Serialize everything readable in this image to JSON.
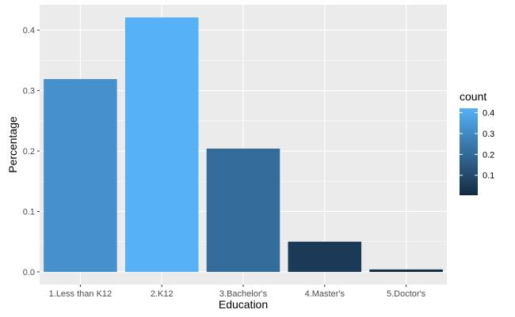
{
  "chart_data": {
    "type": "bar",
    "title": "",
    "xlabel": "Education",
    "ylabel": "Percentage",
    "categories": [
      "1.Less than K12",
      "2.K12",
      "3.Bachelor's",
      "4.Master's",
      "5.Doctor's"
    ],
    "values": [
      0.319,
      0.421,
      0.204,
      0.05,
      0.004
    ],
    "ylim": [
      -0.021,
      0.442
    ],
    "yticks": [
      0.0,
      0.1,
      0.2,
      0.3,
      0.4
    ],
    "ytick_labels": [
      "0.0",
      "0.1",
      "0.2",
      "0.3",
      "0.4"
    ],
    "grid": true,
    "legend": {
      "title": "count",
      "placement": "right",
      "range": [
        0.004,
        0.421
      ],
      "ticks": [
        0.1,
        0.2,
        0.3,
        0.4
      ],
      "tick_labels": [
        "0.1",
        "0.2",
        "0.3",
        "0.4"
      ]
    },
    "colors": {
      "panel": "#ebebeb",
      "grid": "#ffffff",
      "gradient_low": "#132b43",
      "gradient_high": "#56b1f7"
    }
  }
}
